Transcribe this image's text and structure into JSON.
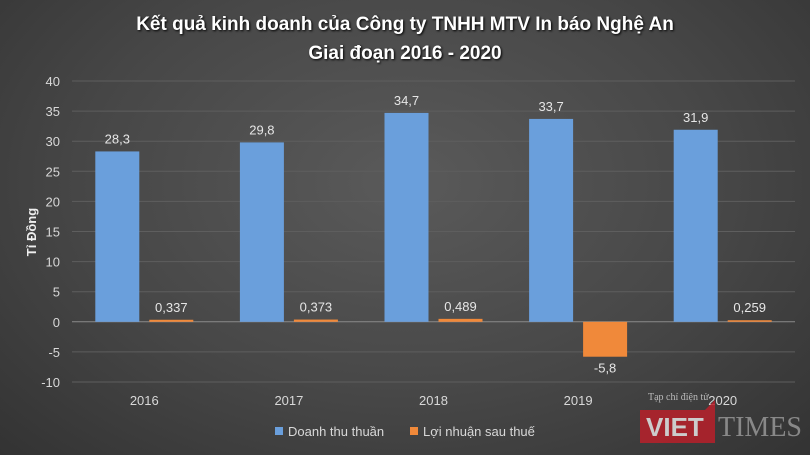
{
  "chart_data": {
    "type": "bar",
    "title": [
      "Kết quả kinh doanh của Công ty TNHH MTV In báo Nghệ An",
      "Giai đoạn 2016 - 2020"
    ],
    "ylabel": "Tỉ Đồng",
    "xlabel": "",
    "ylim": [
      -10,
      40
    ],
    "yticks": [
      40,
      35,
      30,
      25,
      20,
      15,
      10,
      5,
      0,
      -5,
      -10
    ],
    "grid": true,
    "legend_position": "bottom",
    "categories": [
      "2016",
      "2017",
      "2018",
      "2019",
      "2020"
    ],
    "series": [
      {
        "name": "Doanh thu thuần",
        "color": "#6a9fdc",
        "values": [
          28.3,
          29.8,
          34.7,
          33.7,
          31.9
        ],
        "labels": [
          "28,3",
          "29,8",
          "34,7",
          "33,7",
          "31,9"
        ]
      },
      {
        "name": "Lợi nhuận sau thuế",
        "color": "#f0893a",
        "values": [
          0.337,
          0.373,
          0.489,
          -5.8,
          0.259
        ],
        "labels": [
          "0,337",
          "0,373",
          "0,489",
          "-5,8",
          "0,259"
        ]
      }
    ]
  },
  "watermark": {
    "caption": "Tạp chí điện tử",
    "brand_a": "VIET",
    "brand_b": "TIMES"
  }
}
